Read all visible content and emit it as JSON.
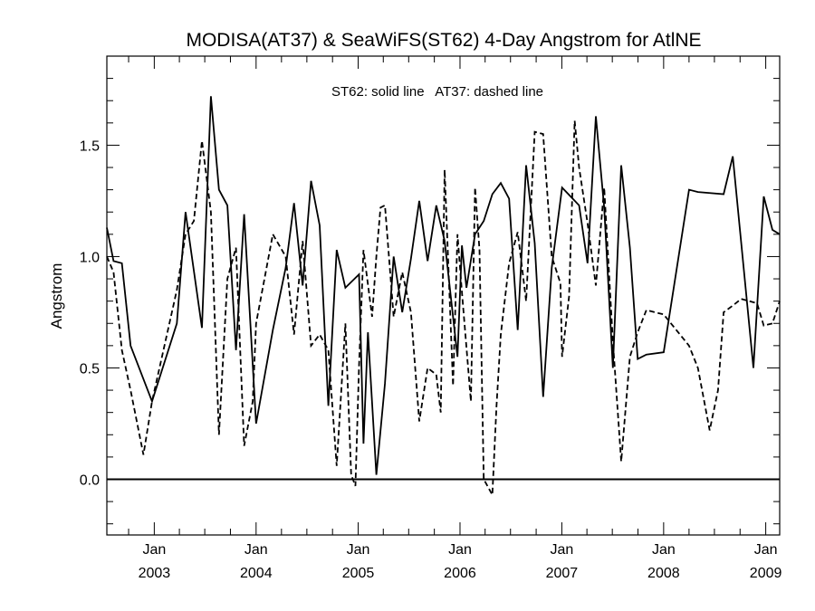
{
  "chart_data": {
    "type": "line",
    "title": "MODISA(AT37) & SeaWiFS(ST62) 4-Day Angstrom for AtlNE",
    "annotation": "ST62: solid line   AT37: dashed line",
    "xlabel": "",
    "ylabel": "Angstrom",
    "xlim": [
      "2002-07-15",
      "2009-02-20"
    ],
    "ylim": [
      -0.25,
      1.9
    ],
    "reference_line": 0.0,
    "grid": false,
    "y_ticks": [
      {
        "value": 0.0,
        "label": "0.0"
      },
      {
        "value": 0.5,
        "label": "0.5"
      },
      {
        "value": 1.0,
        "label": "1.0"
      },
      {
        "value": 1.5,
        "label": "1.5"
      }
    ],
    "x_ticks": [
      {
        "date": "2003-01-01",
        "month": "Jan",
        "year": "2003"
      },
      {
        "date": "2004-01-01",
        "month": "Jan",
        "year": "2004"
      },
      {
        "date": "2005-01-01",
        "month": "Jan",
        "year": "2005"
      },
      {
        "date": "2006-01-01",
        "month": "Jan",
        "year": "2006"
      },
      {
        "date": "2007-01-01",
        "month": "Jan",
        "year": "2007"
      },
      {
        "date": "2008-01-01",
        "month": "Jan",
        "year": "2008"
      },
      {
        "date": "2009-01-01",
        "month": "Jan",
        "year": "2009"
      }
    ],
    "series": [
      {
        "name": "ST62",
        "style": "solid",
        "color": "#000000",
        "x": [
          "2002-07-15",
          "2002-08-08",
          "2002-09-07",
          "2002-10-08",
          "2002-12-24",
          "2003-03-23",
          "2003-04-23",
          "2003-06-21",
          "2003-07-23",
          "2003-08-21",
          "2003-09-20",
          "2003-10-21",
          "2003-11-19",
          "2004-01-01",
          "2004-03-01",
          "2004-04-16",
          "2004-05-16",
          "2004-06-16",
          "2004-07-16",
          "2004-08-16",
          "2004-09-16",
          "2004-10-16",
          "2004-11-16",
          "2005-01-04",
          "2005-01-20",
          "2005-02-05",
          "2005-03-07",
          "2005-04-07",
          "2005-05-08",
          "2005-06-08",
          "2005-07-09",
          "2005-08-08",
          "2005-09-07",
          "2005-10-08",
          "2005-11-07",
          "2005-12-23",
          "2006-01-08",
          "2006-01-24",
          "2006-02-24",
          "2006-03-27",
          "2006-04-27",
          "2006-05-27",
          "2006-06-26",
          "2006-07-27",
          "2006-08-26",
          "2006-09-26",
          "2006-10-26",
          "2006-11-26",
          "2007-01-02",
          "2007-03-04",
          "2007-04-03",
          "2007-05-03",
          "2007-06-02",
          "2007-07-03",
          "2007-08-02",
          "2007-09-02",
          "2007-09-30",
          "2007-10-31",
          "2008-01-01",
          "2008-04-01",
          "2008-05-03",
          "2008-08-03",
          "2008-09-05",
          "2008-11-18",
          "2008-12-25",
          "2009-01-25",
          "2009-02-20"
        ],
        "y": [
          1.13,
          0.98,
          0.97,
          0.6,
          0.35,
          0.7,
          1.2,
          0.68,
          1.72,
          1.3,
          1.23,
          0.58,
          1.19,
          0.25,
          0.67,
          0.95,
          1.24,
          0.87,
          1.34,
          1.14,
          0.33,
          1.03,
          0.86,
          0.92,
          0.16,
          0.66,
          0.02,
          0.43,
          1.0,
          0.75,
          0.99,
          1.25,
          0.98,
          1.23,
          1.07,
          0.55,
          1.05,
          0.86,
          1.1,
          1.16,
          1.28,
          1.33,
          1.26,
          0.67,
          1.41,
          1.06,
          0.37,
          0.95,
          1.31,
          1.23,
          0.97,
          1.63,
          1.22,
          0.5,
          1.41,
          1.04,
          0.54,
          0.56,
          0.57,
          1.3,
          1.29,
          1.28,
          1.45,
          0.5,
          1.27,
          1.12,
          1.1
        ]
      },
      {
        "name": "AT37",
        "style": "dashed",
        "color": "#000000",
        "x": [
          "2002-07-15",
          "2002-08-08",
          "2002-09-07",
          "2002-10-08",
          "2002-11-23",
          "2002-12-24",
          "2003-03-23",
          "2003-04-23",
          "2003-05-23",
          "2003-06-21",
          "2003-07-23",
          "2003-08-21",
          "2003-09-20",
          "2003-10-21",
          "2003-11-19",
          "2003-12-20",
          "2004-01-01",
          "2004-03-01",
          "2004-04-16",
          "2004-05-16",
          "2004-06-16",
          "2004-07-16",
          "2004-08-16",
          "2004-09-16",
          "2004-10-16",
          "2004-11-16",
          "2004-12-07",
          "2004-12-22",
          "2005-01-04",
          "2005-01-20",
          "2005-02-20",
          "2005-03-07",
          "2005-03-22",
          "2005-04-07",
          "2005-05-08",
          "2005-06-08",
          "2005-07-09",
          "2005-08-08",
          "2005-09-07",
          "2005-10-08",
          "2005-10-24",
          "2005-11-07",
          "2005-12-07",
          "2005-12-23",
          "2006-01-08",
          "2006-02-09",
          "2006-02-24",
          "2006-03-12",
          "2006-03-27",
          "2006-04-27",
          "2006-05-12",
          "2006-05-27",
          "2006-06-26",
          "2006-07-27",
          "2006-08-26",
          "2006-09-26",
          "2006-10-26",
          "2006-11-26",
          "2006-12-27",
          "2007-01-02",
          "2007-01-27",
          "2007-02-16",
          "2007-03-04",
          "2007-04-03",
          "2007-05-03",
          "2007-06-02",
          "2007-07-03",
          "2007-08-02",
          "2007-09-02",
          "2007-09-30",
          "2007-10-31",
          "2008-01-01",
          "2008-04-01",
          "2008-05-03",
          "2008-06-14",
          "2008-07-14",
          "2008-08-03",
          "2008-09-05",
          "2008-10-05",
          "2008-12-01",
          "2008-12-25",
          "2009-01-25",
          "2009-02-20"
        ],
        "y": [
          1.0,
          0.93,
          0.58,
          0.4,
          0.11,
          0.35,
          0.85,
          1.1,
          1.16,
          1.52,
          1.2,
          0.2,
          0.9,
          1.04,
          0.15,
          0.35,
          0.7,
          1.1,
          1.0,
          0.65,
          1.07,
          0.6,
          0.65,
          0.58,
          0.06,
          0.7,
          0.02,
          -0.03,
          0.51,
          1.03,
          0.73,
          1.0,
          1.22,
          1.23,
          0.73,
          0.93,
          0.75,
          0.26,
          0.5,
          0.47,
          0.3,
          1.39,
          0.42,
          1.1,
          0.84,
          0.35,
          1.31,
          1.03,
          0.0,
          -0.07,
          0.33,
          0.65,
          0.97,
          1.11,
          0.8,
          1.56,
          1.55,
          1.0,
          0.88,
          0.55,
          0.82,
          1.61,
          1.4,
          1.15,
          0.87,
          1.31,
          0.62,
          0.08,
          0.55,
          0.66,
          0.76,
          0.74,
          0.6,
          0.5,
          0.22,
          0.4,
          0.75,
          0.78,
          0.81,
          0.79,
          0.69,
          0.7,
          0.8
        ]
      }
    ]
  }
}
